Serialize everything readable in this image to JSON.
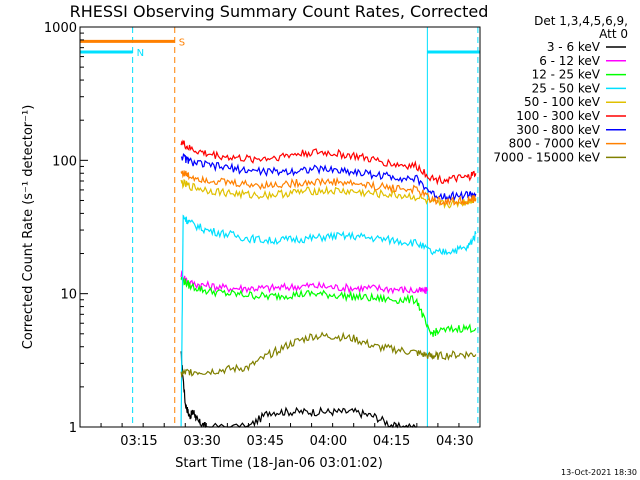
{
  "chart_data": {
    "type": "line",
    "title": "RHESSI Observing Summary Count Rates, Corrected",
    "xlabel": "Start Time (18-Jan-06 03:01:02)",
    "ylabel": "Corrected Count Rate (s⁻¹ detector⁻¹)",
    "y_scale": "log",
    "ylim": [
      1,
      1000
    ],
    "xlim_minutes": [
      0,
      95
    ],
    "x_tick_labels": [
      "03:15",
      "03:30",
      "03:45",
      "04:00",
      "04:15",
      "04:30"
    ],
    "x_tick_minutes": [
      14,
      29,
      44,
      59,
      74,
      89
    ],
    "y_tick_labels": [
      "1",
      "10",
      "100",
      "1000"
    ],
    "y_tick_values": [
      1,
      10,
      100,
      1000
    ],
    "legend": {
      "header": "Det 1,3,4,5,6,9,",
      "subheader": "Att 0",
      "position": "right"
    },
    "attenuator_flags": [
      {
        "label": "N",
        "color": "#00e0ff",
        "segments": [
          [
            0,
            12.5
          ],
          [
            82.5,
            95
          ]
        ],
        "level": 650
      },
      {
        "label": "S",
        "color": "#ff8000",
        "segments": [
          [
            0,
            22.5
          ]
        ],
        "level": 780
      }
    ],
    "vertical_markers": [
      {
        "minute": 12.5,
        "color": "#00e0ff",
        "style": "dashed"
      },
      {
        "minute": 22.5,
        "color": "#ff8000",
        "style": "dashed"
      },
      {
        "minute": 82.5,
        "color": "#00e0ff",
        "style": "solid"
      },
      {
        "minute": 94.5,
        "color": "#00e0ff",
        "style": "dashed"
      }
    ],
    "series": [
      {
        "name": "3 - 6 keV",
        "color": "#000000",
        "x": [
          24,
          25,
          26,
          27,
          28,
          30,
          40,
          45,
          50,
          55,
          60,
          65,
          70,
          75,
          80
        ],
        "y": [
          3.5,
          1.5,
          1.2,
          1.3,
          1.1,
          1.0,
          1.0,
          1.3,
          1.3,
          1.3,
          1.3,
          1.3,
          1.2,
          1.0,
          1.0
        ]
      },
      {
        "name": "6 - 12 keV",
        "color": "#ff00ff",
        "x": [
          24,
          26,
          30,
          35,
          40,
          45,
          50,
          55,
          60,
          65,
          70,
          75,
          80,
          82.5
        ],
        "y": [
          14,
          12,
          11.5,
          11,
          11,
          11,
          11.2,
          11.5,
          11.2,
          11,
          11,
          10.8,
          10.5,
          10.5
        ]
      },
      {
        "name": "12 - 25 keV",
        "color": "#00ff00",
        "x": [
          24,
          26,
          30,
          35,
          40,
          45,
          50,
          55,
          60,
          65,
          70,
          75,
          80,
          83,
          85,
          90,
          94
        ],
        "y": [
          13,
          11.5,
          10.5,
          10,
          9.8,
          9.5,
          9.8,
          10,
          9.8,
          9.5,
          9.2,
          9,
          9,
          5,
          5.2,
          5.5,
          5.5
        ]
      },
      {
        "name": "25 - 50 keV",
        "color": "#00e0ff",
        "x": [
          24,
          24.5,
          26,
          30,
          35,
          40,
          45,
          50,
          55,
          60,
          65,
          70,
          75,
          80,
          84,
          88,
          92,
          94
        ],
        "y": [
          1.0,
          38,
          34,
          30,
          28,
          26,
          25,
          25.5,
          26,
          27,
          27,
          26,
          25,
          24,
          20,
          21,
          22,
          28
        ]
      },
      {
        "name": "50 - 100 keV",
        "color": "#e0c000",
        "x": [
          24,
          26,
          30,
          35,
          40,
          45,
          50,
          55,
          60,
          65,
          70,
          75,
          80,
          84,
          88,
          92,
          94
        ],
        "y": [
          68,
          64,
          60,
          57,
          55,
          55,
          57,
          59,
          59,
          58,
          56,
          55,
          53,
          47,
          47,
          49,
          52
        ]
      },
      {
        "name": "100 - 300 keV",
        "color": "#ff0000",
        "x": [
          24,
          26,
          30,
          35,
          40,
          45,
          50,
          55,
          60,
          65,
          70,
          75,
          80,
          84,
          88,
          92,
          94
        ],
        "y": [
          138,
          122,
          112,
          106,
          102,
          104,
          110,
          115,
          113,
          108,
          100,
          93,
          90,
          72,
          72,
          74,
          80
        ]
      },
      {
        "name": "300 - 800 keV",
        "color": "#0000ff",
        "x": [
          24,
          26,
          30,
          35,
          40,
          45,
          50,
          55,
          60,
          65,
          70,
          75,
          80,
          84,
          88,
          92,
          94
        ],
        "y": [
          108,
          98,
          92,
          88,
          84,
          82,
          83,
          86,
          85,
          82,
          78,
          75,
          72,
          55,
          54,
          55,
          56
        ]
      },
      {
        "name": "800 - 7000 keV",
        "color": "#ff8000",
        "x": [
          24,
          26,
          30,
          35,
          40,
          45,
          50,
          55,
          60,
          65,
          70,
          75,
          80,
          84,
          88,
          92,
          94
        ],
        "y": [
          82,
          76,
          72,
          68,
          66,
          65,
          67,
          69,
          69,
          67,
          64,
          62,
          60,
          50,
          49,
          50,
          51
        ]
      },
      {
        "name": "7000 - 15000 keV",
        "color": "#808000",
        "x": [
          24,
          26,
          30,
          35,
          40,
          45,
          50,
          55,
          60,
          65,
          70,
          75,
          80,
          83,
          85,
          90,
          94
        ],
        "y": [
          2.5,
          2.6,
          2.6,
          2.7,
          2.8,
          3.5,
          4.2,
          4.8,
          4.8,
          4.6,
          4.0,
          3.8,
          3.6,
          3.4,
          3.4,
          3.5,
          3.5
        ]
      }
    ]
  },
  "footer": {
    "date_stamp": "13-Oct-2021 18:30"
  }
}
